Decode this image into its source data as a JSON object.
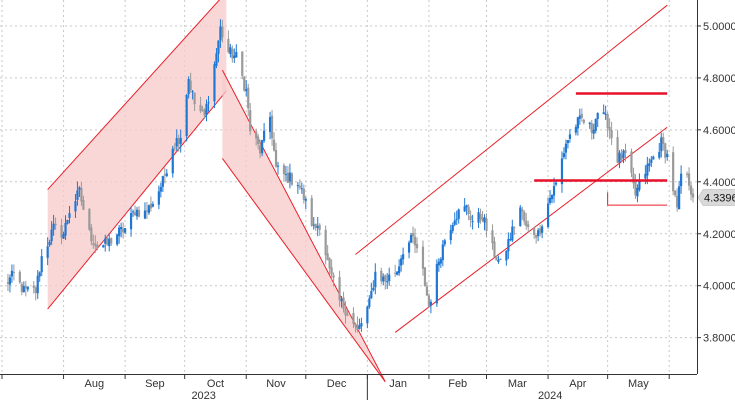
{
  "chart_data": {
    "type": "candlestick",
    "title": "",
    "xlabel": "",
    "ylabel": "",
    "ylim": [
      3.66,
      5.1
    ],
    "grid": true,
    "y_ticks": [
      "3.8000",
      "4.0000",
      "4.2000",
      "4.4000",
      "4.6000",
      "4.8000",
      "5.0000"
    ],
    "month_labels": [
      "Aug",
      "Sep",
      "Oct",
      "Nov",
      "Dec",
      "Jan",
      "Feb",
      "Mar",
      "Apr",
      "May"
    ],
    "year_labels": [
      "2023",
      "2024"
    ],
    "last_value": "4.3396",
    "colors": {
      "up": "#1f77d4",
      "down": "#9a9a9a",
      "channel_fill": "#f8c9c9",
      "channel_line": "#e8202a",
      "level_line": "#e8102a",
      "grid": "#c8c8c8",
      "last_badge": "#d9d9d9"
    },
    "levels": [
      {
        "value": 4.74,
        "start": "2024-04-15",
        "end": "2024-05-31"
      },
      {
        "value": 4.405,
        "start": "2024-03-25",
        "end": "2024-05-31"
      },
      {
        "value": 4.31,
        "start": "2024-05-01",
        "end": "2024-05-31"
      }
    ],
    "channels": [
      {
        "fill": true,
        "lower": [
          [
            "2023-07-24",
            3.91
          ],
          [
            "2023-10-22",
            4.75
          ]
        ],
        "upper": [
          [
            "2023-07-24",
            4.37
          ],
          [
            "2023-10-22",
            5.13
          ]
        ]
      },
      {
        "fill": true,
        "lower": [
          [
            "2023-10-20",
            4.49
          ],
          [
            "2024-01-10",
            3.63
          ]
        ],
        "upper": [
          [
            "2023-10-20",
            4.83
          ],
          [
            "2024-01-10",
            3.63
          ]
        ]
      },
      {
        "fill": false,
        "lower": [
          [
            "2024-01-15",
            3.82
          ],
          [
            "2024-05-31",
            4.61
          ]
        ],
        "upper": [
          [
            "2023-12-26",
            4.12
          ],
          [
            "2024-05-31",
            5.08
          ]
        ]
      }
    ],
    "anchors": [
      [
        "2023-07-03",
        4.01
      ],
      [
        "2023-07-07",
        4.04
      ],
      [
        "2023-07-12",
        3.98
      ],
      [
        "2023-07-18",
        3.98
      ],
      [
        "2023-07-21",
        4.11
      ],
      [
        "2023-07-27",
        4.22
      ],
      [
        "2023-08-01",
        4.2
      ],
      [
        "2023-08-04",
        4.29
      ],
      [
        "2023-08-09",
        4.36
      ],
      [
        "2023-08-14",
        4.2
      ],
      [
        "2023-08-18",
        4.15
      ],
      [
        "2023-08-23",
        4.16
      ],
      [
        "2023-08-28",
        4.2
      ],
      [
        "2023-09-01",
        4.22
      ],
      [
        "2023-09-06",
        4.29
      ],
      [
        "2023-09-11",
        4.28
      ],
      [
        "2023-09-15",
        4.32
      ],
      [
        "2023-09-20",
        4.4
      ],
      [
        "2023-09-25",
        4.54
      ],
      [
        "2023-09-29",
        4.58
      ],
      [
        "2023-10-03",
        4.8
      ],
      [
        "2023-10-06",
        4.7
      ],
      [
        "2023-10-11",
        4.65
      ],
      [
        "2023-10-16",
        4.85
      ],
      [
        "2023-10-19",
        4.99
      ],
      [
        "2023-10-23",
        4.9
      ],
      [
        "2023-10-27",
        4.88
      ],
      [
        "2023-11-01",
        4.75
      ],
      [
        "2023-11-03",
        4.6
      ],
      [
        "2023-11-08",
        4.52
      ],
      [
        "2023-11-13",
        4.65
      ],
      [
        "2023-11-16",
        4.45
      ],
      [
        "2023-11-21",
        4.42
      ],
      [
        "2023-11-27",
        4.4
      ],
      [
        "2023-11-30",
        4.34
      ],
      [
        "2023-12-05",
        4.22
      ],
      [
        "2023-12-08",
        4.24
      ],
      [
        "2023-12-13",
        4.05
      ],
      [
        "2023-12-18",
        3.94
      ],
      [
        "2023-12-22",
        3.9
      ],
      [
        "2023-12-27",
        3.82
      ],
      [
        "2024-01-02",
        3.93
      ],
      [
        "2024-01-05",
        4.05
      ],
      [
        "2024-01-10",
        4.02
      ],
      [
        "2024-01-16",
        4.06
      ],
      [
        "2024-01-19",
        4.14
      ],
      [
        "2024-01-24",
        4.18
      ],
      [
        "2024-01-29",
        4.05
      ],
      [
        "2024-02-01",
        3.92
      ],
      [
        "2024-02-06",
        4.1
      ],
      [
        "2024-02-09",
        4.18
      ],
      [
        "2024-02-14",
        4.27
      ],
      [
        "2024-02-20",
        4.3
      ],
      [
        "2024-02-23",
        4.25
      ],
      [
        "2024-02-28",
        4.27
      ],
      [
        "2024-03-04",
        4.14
      ],
      [
        "2024-03-08",
        4.08
      ],
      [
        "2024-03-13",
        4.19
      ],
      [
        "2024-03-18",
        4.3
      ],
      [
        "2024-03-21",
        4.22
      ],
      [
        "2024-03-27",
        4.2
      ],
      [
        "2024-04-02",
        4.34
      ],
      [
        "2024-04-05",
        4.39
      ],
      [
        "2024-04-10",
        4.55
      ],
      [
        "2024-04-15",
        4.62
      ],
      [
        "2024-04-18",
        4.64
      ],
      [
        "2024-04-23",
        4.6
      ],
      [
        "2024-04-26",
        4.67
      ],
      [
        "2024-05-01",
        4.63
      ],
      [
        "2024-05-06",
        4.49
      ],
      [
        "2024-05-10",
        4.5
      ],
      [
        "2024-05-15",
        4.35
      ],
      [
        "2024-05-20",
        4.44
      ],
      [
        "2024-05-23",
        4.48
      ],
      [
        "2024-05-28",
        4.55
      ],
      [
        "2024-05-31",
        4.5
      ],
      [
        "2024-06-05",
        4.29
      ],
      [
        "2024-06-07",
        4.43
      ],
      [
        "2024-06-11",
        4.4
      ],
      [
        "2024-06-13",
        4.3396
      ]
    ]
  }
}
